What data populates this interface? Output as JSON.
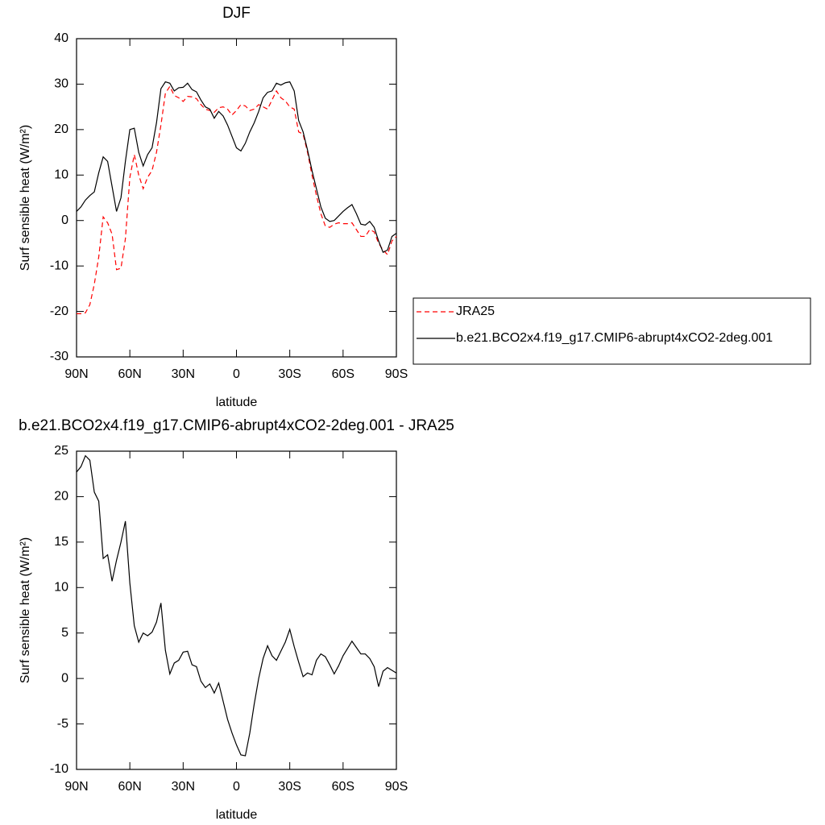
{
  "chart_data": [
    {
      "type": "line",
      "title": "DJF",
      "x_label": "latitude",
      "y_label": "Surf sensible heat (W/m²)",
      "x": [
        90,
        87.5,
        85,
        82.5,
        80,
        77.5,
        75,
        72.5,
        70,
        67.5,
        65,
        62.5,
        60,
        57.5,
        55,
        52.5,
        50,
        47.5,
        45,
        42.5,
        40,
        37.5,
        35,
        32.5,
        30,
        27.5,
        25,
        22.5,
        20,
        17.5,
        15,
        12.5,
        10,
        7.5,
        5,
        2.5,
        0,
        -2.5,
        -5,
        -7.5,
        -10,
        -12.5,
        -15,
        -17.5,
        -20,
        -22.5,
        -25,
        -27.5,
        -30,
        -32.5,
        -35,
        -37.5,
        -40,
        -42.5,
        -45,
        -47.5,
        -50,
        -52.5,
        -55,
        -57.5,
        -60,
        -62.5,
        -65,
        -67.5,
        -70,
        -72.5,
        -75,
        -77.5,
        -80,
        -82.5,
        -85,
        -87.5,
        -90
      ],
      "series": [
        {
          "name": "JRA25",
          "color": "#ff0000",
          "dashed": true,
          "values": [
            -20.5,
            -20.5,
            -20.3,
            -18.5,
            -14,
            -8,
            0.8,
            -0.5,
            -3,
            -10.8,
            -10.5,
            -4,
            9.5,
            14.5,
            10,
            7,
            9.5,
            11,
            15,
            21,
            28,
            29.5,
            27.5,
            27,
            26.2,
            27.3,
            27.2,
            26.8,
            25.5,
            24.5,
            24.2,
            23.8,
            24.8,
            25,
            24.5,
            23.2,
            24.2,
            25.5,
            25.2,
            24.2,
            24.5,
            25.5,
            25,
            24.5,
            26.5,
            28.5,
            27,
            26.3,
            25,
            24.5,
            19.5,
            19,
            15,
            10,
            5.5,
            1.5,
            -1.2,
            -1.5,
            -0.8,
            -0.5,
            -0.7,
            -0.7,
            -0.5,
            -2,
            -3.5,
            -3.5,
            -2,
            -2.5,
            -5,
            -6.5,
            -7.5,
            -4.5,
            -3.5
          ]
        },
        {
          "name": "b.e21.BCO2x4.f19_g17.CMIP6-abrupt4xCO2-2deg.001",
          "color": "#000000",
          "dashed": false,
          "values": [
            2,
            3,
            4.5,
            5.5,
            6.3,
            10.5,
            14,
            13,
            7.5,
            2,
            5,
            13,
            20,
            20.3,
            15,
            12,
            14.5,
            16,
            21.5,
            29,
            30.5,
            30.2,
            28.5,
            29.2,
            29.3,
            30.2,
            28.8,
            28.3,
            26.5,
            25,
            24.5,
            22.5,
            24,
            23,
            21,
            18.5,
            16,
            15.3,
            17,
            19.5,
            21.5,
            24,
            27,
            28.2,
            28.5,
            30.2,
            29.8,
            30.3,
            30.5,
            28.5,
            22,
            19.5,
            15.5,
            11,
            7,
            3,
            0.5,
            -0.2,
            0,
            1,
            2,
            2.8,
            3.5,
            1.5,
            -0.8,
            -1,
            -0.2,
            -1.5,
            -4.5,
            -7,
            -6.5,
            -3.5,
            -2.8
          ]
        }
      ],
      "xlim": [
        90,
        -90
      ],
      "xticks": [
        {
          "value": 90,
          "label": "90N"
        },
        {
          "value": 60,
          "label": "60N"
        },
        {
          "value": 30,
          "label": "30N"
        },
        0,
        {
          "value": -30,
          "label": "30S"
        },
        {
          "value": -60,
          "label": "60S"
        },
        {
          "value": -90,
          "label": "90S"
        }
      ],
      "ylim": [
        -30,
        40
      ],
      "yticks": [
        -30,
        -20,
        -10,
        0,
        10,
        20,
        30,
        40
      ],
      "legend": "right"
    },
    {
      "type": "line",
      "title": "b.e21.BCO2x4.f19_g17.CMIP6-abrupt4xCO2-2deg.001 - JRA25",
      "x_label": "latitude",
      "y_label": "Surf sensible heat (W/m²)",
      "x": [
        90,
        87.5,
        85,
        82.5,
        80,
        77.5,
        75,
        72.5,
        70,
        67.5,
        65,
        62.5,
        60,
        57.5,
        55,
        52.5,
        50,
        47.5,
        45,
        42.5,
        40,
        37.5,
        35,
        32.5,
        30,
        27.5,
        25,
        22.5,
        20,
        17.5,
        15,
        12.5,
        10,
        7.5,
        5,
        2.5,
        0,
        -2.5,
        -5,
        -7.5,
        -10,
        -12.5,
        -15,
        -17.5,
        -20,
        -22.5,
        -25,
        -27.5,
        -30,
        -32.5,
        -35,
        -37.5,
        -40,
        -42.5,
        -45,
        -47.5,
        -50,
        -52.5,
        -55,
        -57.5,
        -60,
        -62.5,
        -65,
        -67.5,
        -70,
        -72.5,
        -75,
        -77.5,
        -80,
        -82.5,
        -85,
        -87.5,
        -90
      ],
      "series": [
        {
          "color": "#000000",
          "dashed": false,
          "values": [
            22.7,
            23.3,
            24.5,
            24,
            20.5,
            19.5,
            13.2,
            13.6,
            10.7,
            13,
            15,
            17.3,
            10.5,
            5.8,
            4,
            5,
            4.7,
            5.1,
            6.2,
            8.3,
            3.1,
            0.5,
            1.7,
            2,
            2.9,
            3,
            1.5,
            1.3,
            -0.3,
            -1,
            -0.6,
            -1.6,
            -0.5,
            -2.5,
            -4.5,
            -6,
            -7.3,
            -8.4,
            -8.5,
            -6,
            -2.8,
            0,
            2.2,
            3.6,
            2.5,
            2,
            3,
            4,
            5.4,
            3.5,
            1.8,
            0.2,
            0.6,
            0.4,
            2,
            2.7,
            2.4,
            1.5,
            0.5,
            1.4,
            2.5,
            3.3,
            4.1,
            3.4,
            2.7,
            2.7,
            2.2,
            1.3,
            -0.9,
            0.8,
            1.2,
            0.9,
            0.6
          ]
        }
      ],
      "xlim": [
        90,
        -90
      ],
      "xticks": [
        {
          "value": 90,
          "label": "90N"
        },
        {
          "value": 60,
          "label": "60N"
        },
        {
          "value": 30,
          "label": "30N"
        },
        0,
        {
          "value": -30,
          "label": "30S"
        },
        {
          "value": -60,
          "label": "60S"
        },
        {
          "value": -90,
          "label": "90S"
        }
      ],
      "ylim": [
        -10,
        25
      ],
      "yticks": [
        -10,
        -5,
        0,
        5,
        10,
        15,
        20,
        25
      ]
    }
  ]
}
